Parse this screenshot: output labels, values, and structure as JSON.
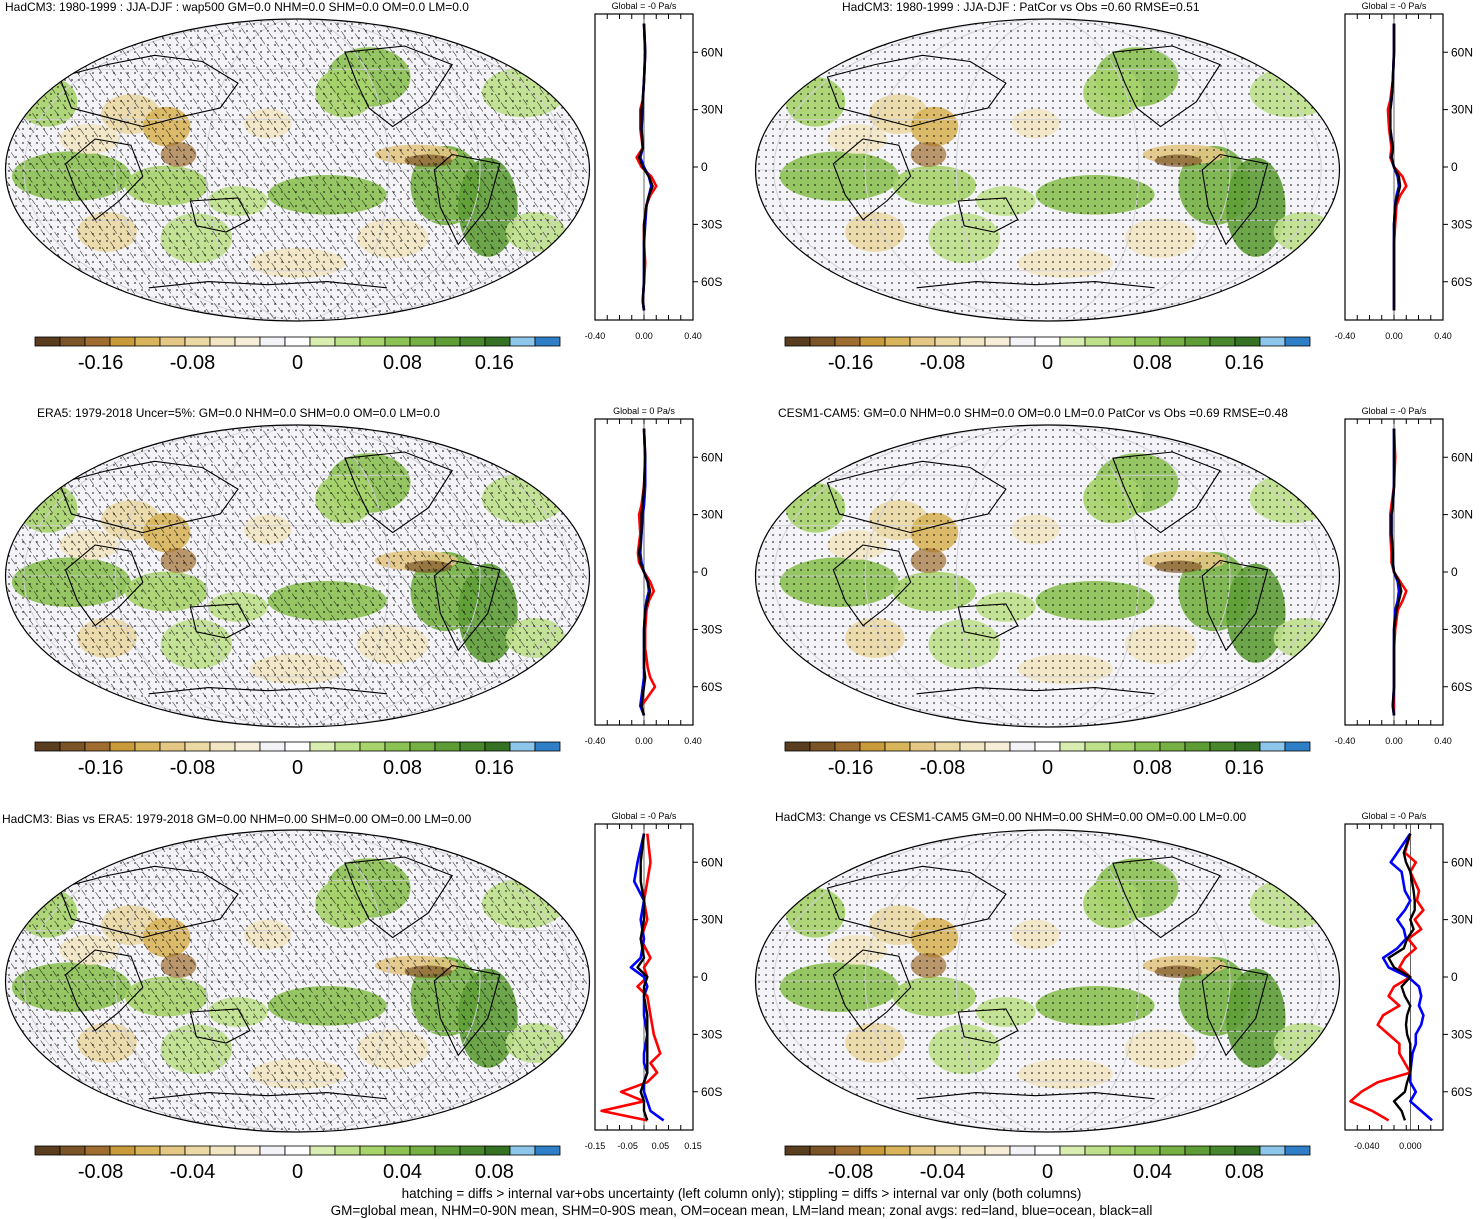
{
  "colors": {
    "palette": [
      "#5a3d1e",
      "#7b5427",
      "#a06d30",
      "#c89a3a",
      "#d8b45a",
      "#e3c783",
      "#ebd8a3",
      "#f2e6c2",
      "#f6eed8",
      "#f3f3f7",
      "#ffffff",
      "#d9edb0",
      "#bfe08b",
      "#a6d36a",
      "#8cc153",
      "#76b043",
      "#5e9d36",
      "#49872c",
      "#367224",
      "#8cc6ea",
      "#2f7fc8"
    ],
    "land": "#ff0000",
    "ocean": "#0000ff",
    "all": "#000000",
    "map_background": "#f3f3f8"
  },
  "panels": [
    {
      "id": "p1",
      "title": "HadCM3: 1980-1999 : JJA-DJF : wap500 GM=0.0 NHM=0.0 SHM=0.0 OM=0.0 LM=0.0",
      "hatching": true,
      "colorbar_labels": [
        "-0.16",
        "-0.08",
        "0",
        "0.08",
        "0.16"
      ],
      "zonal": {
        "header": "Global = -0 Pa/s",
        "xticks": [
          "-0.40",
          "0.00",
          "0.40"
        ],
        "xlim": [
          -0.4,
          0.4
        ],
        "yticks": [
          "60N",
          "30N",
          "0",
          "30S",
          "60S"
        ]
      }
    },
    {
      "id": "p2",
      "title": "HadCM3: 1980-1999 : JJA-DJF : PatCor vs Obs =0.60 RMSE=0.51",
      "hatching": false,
      "colorbar_labels": [
        "-0.16",
        "-0.08",
        "0",
        "0.08",
        "0.16"
      ],
      "zonal": {
        "header": "Global = -0 Pa/s",
        "xticks": [
          "-0.40",
          "0.00",
          "0.40"
        ],
        "xlim": [
          -0.4,
          0.4
        ],
        "yticks": [
          "60N",
          "30N",
          "0",
          "30S",
          "60S"
        ]
      }
    },
    {
      "id": "p3",
      "title": "ERA5: 1979-2018 Uncer=5%: GM=0.0 NHM=0.0 SHM=0.0 OM=0.0 LM=0.0",
      "hatching": true,
      "colorbar_labels": [
        "-0.16",
        "-0.08",
        "0",
        "0.08",
        "0.16"
      ],
      "zonal": {
        "header": "Global = 0 Pa/s",
        "xticks": [
          "-0.40",
          "0.00",
          "0.40"
        ],
        "xlim": [
          -0.4,
          0.4
        ],
        "yticks": [
          "60N",
          "30N",
          "0",
          "30S",
          "60S"
        ]
      }
    },
    {
      "id": "p4",
      "title": "CESM1-CAM5: GM=0.0 NHM=0.0 SHM=0.0 OM=0.0 LM=0.0 PatCor vs Obs =0.69 RMSE=0.48",
      "hatching": false,
      "colorbar_labels": [
        "-0.16",
        "-0.08",
        "0",
        "0.08",
        "0.16"
      ],
      "zonal": {
        "header": "Global = -0 Pa/s",
        "xticks": [
          "-0.40",
          "0.00",
          "0.40"
        ],
        "xlim": [
          -0.4,
          0.4
        ],
        "yticks": [
          "60N",
          "30N",
          "0",
          "30S",
          "60S"
        ]
      }
    },
    {
      "id": "p5",
      "title": "HadCM3: Bias vs ERA5: 1979-2018 GM=0.00 NHM=0.00 SHM=0.00 OM=0.00 LM=0.00",
      "hatching": true,
      "colorbar_labels": [
        "-0.08",
        "-0.04",
        "0",
        "0.04",
        "0.08"
      ],
      "zonal": {
        "header": "Global = -0 Pa/s",
        "xticks": [
          "-0.15",
          "-0.05",
          "0.05",
          "0.15"
        ],
        "xlim": [
          -0.15,
          0.15
        ],
        "yticks": [
          "60N",
          "30N",
          "0",
          "30S",
          "60S"
        ]
      }
    },
    {
      "id": "p6",
      "title": "HadCM3: Change vs CESM1-CAM5 GM=0.00 NHM=0.00 SHM=0.00 OM=0.00 LM=0.00",
      "hatching": false,
      "colorbar_labels": [
        "-0.08",
        "-0.04",
        "0",
        "0.04",
        "0.08"
      ],
      "zonal": {
        "header": "Global = -0 Pa/s",
        "xticks": [
          "-0.040",
          "0.000"
        ],
        "xlim": [
          -0.06,
          0.03
        ],
        "yticks": [
          "60N",
          "30N",
          "0",
          "30S",
          "60S"
        ]
      }
    }
  ],
  "footer": {
    "line1": "hatching = diffs > internal var+obs uncertainty (left column only); stippling = diffs > internal var only (both columns)",
    "line2": "GM=global mean, NHM=0-90N mean, SHM=0-90S mean, OM=ocean mean, LM=land mean; zonal avgs: red=land, blue=ocean, black=all"
  },
  "chart_data": [
    {
      "type": "line",
      "title": "Global = -0 Pa/s",
      "xlim": [
        -0.4,
        0.4
      ],
      "x_ticks": [
        "-0.40",
        "0.00",
        "0.40"
      ],
      "y_ticks": [
        "60N",
        "30N",
        "0",
        "30S",
        "60S"
      ],
      "lat": [
        75,
        60,
        45,
        35,
        30,
        20,
        10,
        5,
        0,
        -5,
        -10,
        -15,
        -20,
        -30,
        -40,
        -50,
        -60,
        -70,
        -75
      ],
      "series": [
        {
          "values": [
            0.0,
            0.01,
            0.0,
            -0.01,
            -0.03,
            -0.03,
            -0.01,
            -0.06,
            -0.02,
            0.06,
            0.1,
            0.05,
            0.02,
            0.0,
            0.0,
            0.01,
            0.0,
            -0.01,
            0.0
          ]
        },
        {
          "values": [
            0.0,
            0.01,
            0.0,
            -0.01,
            -0.01,
            -0.02,
            -0.01,
            -0.03,
            0.0,
            0.04,
            0.06,
            0.04,
            0.02,
            0.01,
            0.0,
            0.0,
            0.0,
            -0.01,
            0.0
          ]
        },
        {
          "values": [
            0.0,
            0.01,
            0.0,
            -0.01,
            -0.02,
            -0.02,
            -0.01,
            -0.04,
            -0.01,
            0.04,
            0.07,
            0.04,
            0.02,
            0.0,
            0.0,
            0.0,
            0.0,
            -0.01,
            0.0
          ]
        }
      ]
    },
    {
      "type": "line",
      "title": "Global = -0 Pa/s",
      "xlim": [
        -0.4,
        0.4
      ],
      "x_ticks": [
        "-0.40",
        "0.00",
        "0.40"
      ],
      "y_ticks": [
        "60N",
        "30N",
        "0",
        "30S",
        "60S"
      ],
      "lat": [
        75,
        60,
        45,
        35,
        30,
        20,
        10,
        5,
        0,
        -5,
        -10,
        -15,
        -20,
        -30,
        -40,
        -50,
        -60,
        -70,
        -75
      ],
      "series": [
        {
          "values": [
            0.0,
            0.0,
            -0.01,
            -0.03,
            -0.05,
            -0.04,
            -0.02,
            -0.03,
            0.0,
            0.07,
            0.1,
            0.05,
            0.02,
            0.01,
            0.0,
            0.0,
            0.0,
            0.0,
            0.0
          ]
        },
        {
          "values": [
            0.0,
            0.0,
            -0.01,
            -0.02,
            -0.03,
            -0.03,
            -0.01,
            -0.02,
            0.0,
            0.03,
            0.04,
            0.02,
            0.01,
            0.0,
            0.0,
            0.0,
            0.0,
            0.0,
            0.0
          ]
        },
        {
          "values": [
            0.0,
            0.0,
            -0.01,
            -0.02,
            -0.03,
            -0.03,
            -0.01,
            -0.02,
            0.0,
            0.04,
            0.05,
            0.03,
            0.01,
            0.0,
            0.0,
            0.0,
            0.0,
            0.0,
            0.0
          ]
        }
      ]
    },
    {
      "type": "line",
      "title": "Global = 0 Pa/s",
      "xlim": [
        -0.4,
        0.4
      ],
      "x_ticks": [
        "-0.40",
        "0.00",
        "0.40"
      ],
      "y_ticks": [
        "60N",
        "30N",
        "0",
        "30S",
        "60S"
      ],
      "lat": [
        75,
        60,
        45,
        35,
        30,
        20,
        10,
        5,
        0,
        -5,
        -10,
        -15,
        -20,
        -30,
        -40,
        -50,
        -55,
        -60,
        -70,
        -75
      ],
      "series": [
        {
          "values": [
            0.0,
            0.01,
            0.0,
            -0.02,
            -0.04,
            -0.03,
            -0.05,
            -0.04,
            0.0,
            0.05,
            0.08,
            0.04,
            0.02,
            0.01,
            0.01,
            0.03,
            0.05,
            0.09,
            -0.02,
            0.0
          ]
        },
        {
          "values": [
            0.0,
            0.01,
            0.01,
            0.0,
            -0.01,
            -0.02,
            -0.03,
            -0.02,
            0.0,
            0.03,
            0.04,
            0.02,
            0.01,
            0.0,
            0.0,
            0.0,
            0.0,
            -0.01,
            -0.03,
            0.0
          ]
        },
        {
          "values": [
            0.0,
            0.01,
            0.0,
            -0.01,
            -0.02,
            -0.02,
            -0.04,
            -0.03,
            0.0,
            0.03,
            0.05,
            0.03,
            0.01,
            0.0,
            0.0,
            0.0,
            0.01,
            0.0,
            -0.02,
            0.0
          ]
        }
      ]
    },
    {
      "type": "line",
      "title": "Global = -0 Pa/s",
      "xlim": [
        -0.4,
        0.4
      ],
      "x_ticks": [
        "-0.40",
        "0.00",
        "0.40"
      ],
      "y_ticks": [
        "60N",
        "30N",
        "0",
        "30S",
        "60S"
      ],
      "lat": [
        75,
        60,
        45,
        35,
        30,
        20,
        10,
        5,
        0,
        -5,
        -10,
        -15,
        -20,
        -30,
        -40,
        -50,
        -60,
        -70,
        -75
      ],
      "series": [
        {
          "values": [
            0.0,
            0.01,
            0.0,
            -0.02,
            -0.03,
            -0.03,
            -0.02,
            -0.02,
            0.0,
            0.05,
            0.1,
            0.07,
            0.03,
            0.01,
            0.0,
            0.0,
            0.0,
            0.0,
            0.0
          ]
        },
        {
          "values": [
            0.0,
            0.0,
            0.0,
            -0.01,
            -0.02,
            -0.02,
            -0.01,
            -0.01,
            0.0,
            0.03,
            0.04,
            0.03,
            0.01,
            0.0,
            0.0,
            0.0,
            0.0,
            -0.01,
            0.0
          ]
        },
        {
          "values": [
            0.0,
            0.0,
            0.0,
            -0.01,
            -0.02,
            -0.02,
            -0.01,
            -0.01,
            0.0,
            0.04,
            0.06,
            0.04,
            0.02,
            0.0,
            0.0,
            0.0,
            0.0,
            -0.01,
            0.0
          ]
        }
      ]
    },
    {
      "type": "line",
      "title": "Global = -0 Pa/s",
      "xlim": [
        -0.15,
        0.15
      ],
      "x_ticks": [
        "-0.15",
        "-0.05",
        "0.05",
        "0.15"
      ],
      "y_ticks": [
        "60N",
        "30N",
        "0",
        "30S",
        "60S"
      ],
      "lat": [
        75,
        60,
        50,
        40,
        30,
        20,
        10,
        5,
        0,
        -5,
        -10,
        -20,
        -30,
        -40,
        -45,
        -50,
        -55,
        -60,
        -65,
        -70,
        -75
      ],
      "series": [
        {
          "values": [
            0.01,
            0.02,
            0.01,
            0.0,
            0.01,
            -0.01,
            0.02,
            0.0,
            0.01,
            -0.02,
            0.01,
            0.02,
            0.03,
            0.05,
            0.02,
            0.04,
            0.01,
            -0.07,
            0.0,
            -0.13,
            0.01
          ]
        },
        {
          "values": [
            0.0,
            -0.02,
            -0.03,
            0.0,
            -0.01,
            0.0,
            -0.01,
            -0.04,
            0.0,
            0.01,
            0.0,
            0.0,
            0.01,
            0.0,
            0.0,
            0.01,
            0.0,
            0.0,
            0.01,
            0.02,
            0.06
          ]
        },
        {
          "values": [
            0.0,
            -0.01,
            -0.01,
            0.0,
            0.0,
            -0.01,
            0.0,
            -0.02,
            0.01,
            0.0,
            0.0,
            0.01,
            0.01,
            0.01,
            0.01,
            0.01,
            0.0,
            -0.01,
            0.0,
            0.0,
            0.01
          ]
        }
      ]
    },
    {
      "type": "line",
      "title": "Global = -0 Pa/s",
      "xlim": [
        -0.06,
        0.03
      ],
      "x_ticks": [
        "-0.040",
        "0.000"
      ],
      "y_ticks": [
        "60N",
        "30N",
        "0",
        "30S",
        "60S"
      ],
      "lat": [
        75,
        65,
        60,
        55,
        45,
        40,
        35,
        30,
        25,
        20,
        15,
        10,
        5,
        0,
        -5,
        -10,
        -15,
        -20,
        -25,
        -30,
        -35,
        -40,
        -50,
        -55,
        -60,
        -65,
        -70,
        -75
      ],
      "series": [
        {
          "values": [
            0.0,
            -0.005,
            0.005,
            0.0,
            0.008,
            0.006,
            0.012,
            0.004,
            0.01,
            -0.002,
            0.005,
            -0.005,
            -0.01,
            0.0,
            -0.015,
            -0.02,
            -0.01,
            -0.025,
            -0.03,
            -0.02,
            -0.01,
            -0.01,
            0.0,
            -0.03,
            -0.045,
            -0.055,
            -0.035,
            -0.02
          ]
        },
        {
          "values": [
            0.0,
            -0.012,
            -0.018,
            -0.008,
            -0.005,
            0.0,
            -0.005,
            -0.012,
            -0.006,
            -0.004,
            -0.012,
            -0.025,
            -0.02,
            -0.002,
            0.008,
            0.01,
            0.008,
            0.012,
            0.01,
            0.005,
            0.005,
            0.002,
            0.0,
            0.0,
            0.005,
            0.0,
            0.01,
            0.02
          ]
        },
        {
          "values": [
            0.0,
            -0.006,
            -0.004,
            0.0,
            0.003,
            0.004,
            0.004,
            0.0,
            0.003,
            -0.003,
            -0.006,
            -0.02,
            -0.015,
            0.0,
            -0.008,
            -0.005,
            0.0,
            -0.003,
            -0.004,
            -0.003,
            0.0,
            0.0,
            0.0,
            -0.003,
            -0.005,
            -0.015,
            -0.008,
            -0.005
          ]
        }
      ]
    }
  ]
}
